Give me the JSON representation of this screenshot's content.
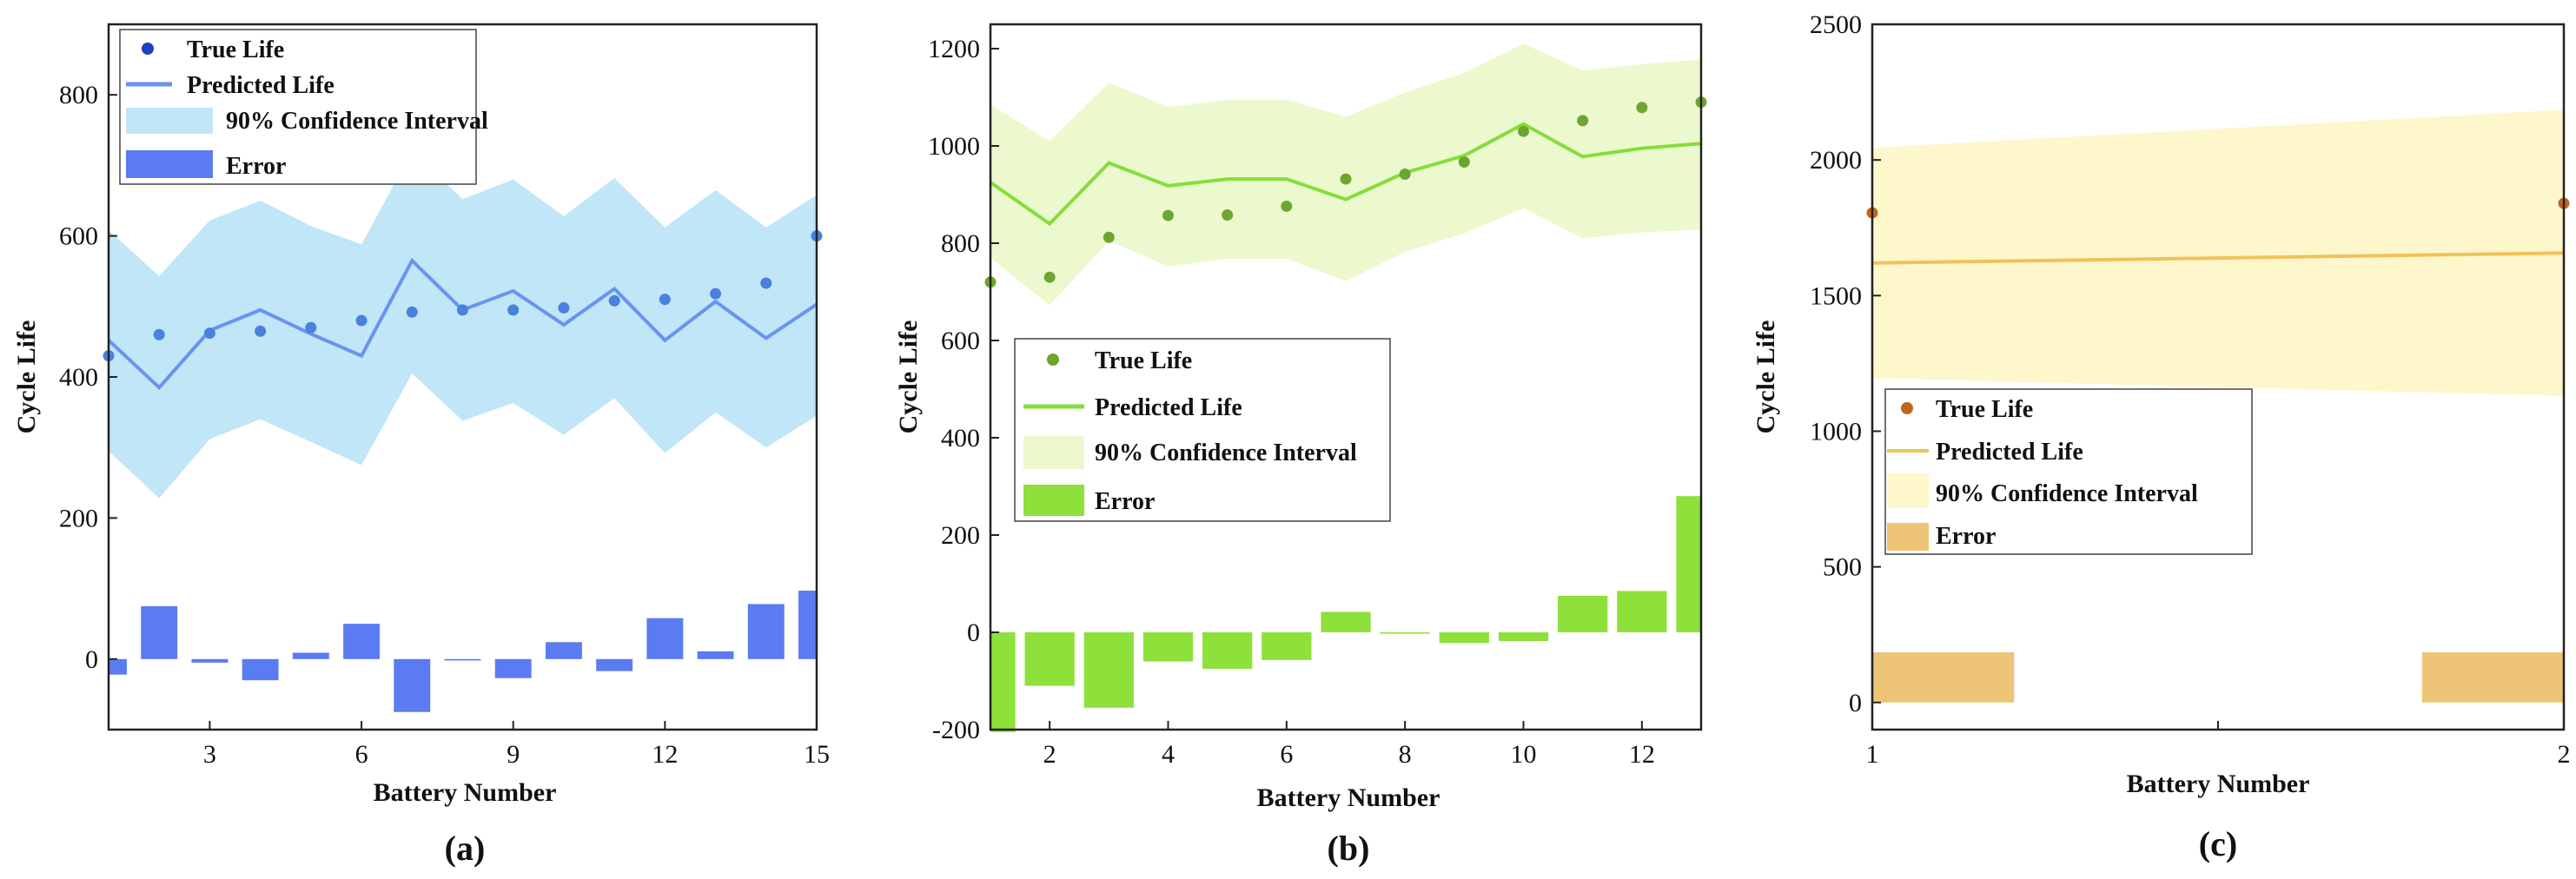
{
  "figure": {
    "panels": [
      {
        "id": "a",
        "panel_label": "(a)",
        "colors": {
          "point": "#4a80de",
          "line": "#6a93f0",
          "band": "#c0e6f7",
          "bar": "#5b7bf2",
          "legend_point": "#1f3fc4"
        },
        "chart_data": {
          "type": "line",
          "xlabel": "Battery Number",
          "ylabel": "Cycle Life",
          "xlim": [
            1,
            15
          ],
          "ylim": [
            -100,
            900
          ],
          "x_ticks": [
            3,
            6,
            9,
            12,
            15
          ],
          "y_ticks": [
            0,
            200,
            400,
            600,
            800
          ],
          "x": [
            1,
            2,
            3,
            4,
            5,
            6,
            7,
            8,
            9,
            10,
            11,
            12,
            13,
            14,
            15
          ],
          "series": [
            {
              "name": "True Life",
              "kind": "points",
              "values": [
                430,
                460,
                462,
                465,
                470,
                480,
                492,
                495,
                495,
                498,
                508,
                510,
                518,
                533,
                600
              ]
            },
            {
              "name": "Predicted Life",
              "kind": "line",
              "values": [
                452,
                385,
                466,
                495,
                461,
                430,
                565,
                495,
                522,
                474,
                525,
                452,
                507,
                455,
                503
              ]
            },
            {
              "name": "90% Confidence Interval",
              "kind": "band",
              "lower": [
                295,
                228,
                312,
                340,
                308,
                275,
                405,
                338,
                363,
                318,
                370,
                292,
                350,
                300,
                345
              ],
              "upper": [
                608,
                543,
                622,
                650,
                614,
                588,
                720,
                652,
                680,
                628,
                682,
                612,
                665,
                612,
                658
              ]
            },
            {
              "name": "Error",
              "kind": "bar",
              "values": [
                -22,
                75,
                -5,
                -30,
                9,
                50,
                -75,
                -2,
                -27,
                24,
                -17,
                58,
                11,
                78,
                97
              ]
            }
          ],
          "legend": [
            "True Life",
            "Predicted Life",
            "90% Confidence Interval",
            "Error"
          ]
        }
      },
      {
        "id": "b",
        "panel_label": "(b)",
        "colors": {
          "point": "#6ea52f",
          "line": "#86dd3c",
          "band": "#ecf9cf",
          "bar": "#8ee03a",
          "legend_point": "#6ea52f"
        },
        "chart_data": {
          "type": "line",
          "xlabel": "Battery Number",
          "ylabel": "Cycle Life",
          "xlim": [
            1,
            13
          ],
          "ylim": [
            -200,
            1250
          ],
          "x_ticks": [
            2,
            4,
            6,
            8,
            10,
            12
          ],
          "y_ticks": [
            -200,
            0,
            200,
            400,
            600,
            800,
            1000,
            1200
          ],
          "x": [
            1,
            2,
            3,
            4,
            5,
            6,
            7,
            8,
            9,
            10,
            11,
            12,
            13
          ],
          "series": [
            {
              "name": "True Life",
              "kind": "points",
              "values": [
                720,
                730,
                812,
                857,
                858,
                876,
                932,
                942,
                967,
                1030,
                1052,
                1079,
                1090
              ]
            },
            {
              "name": "Predicted Life",
              "kind": "line",
              "values": [
                925,
                840,
                965,
                918,
                932,
                932,
                890,
                945,
                980,
                1045,
                978,
                995,
                1005
              ]
            },
            {
              "name": "90% Confidence Interval",
              "kind": "band",
              "lower": [
                770,
                672,
                805,
                752,
                768,
                768,
                722,
                782,
                820,
                872,
                810,
                822,
                828
              ],
              "upper": [
                1085,
                1010,
                1130,
                1080,
                1095,
                1095,
                1060,
                1110,
                1150,
                1210,
                1155,
                1168,
                1178
              ]
            },
            {
              "name": "Error",
              "kind": "bar",
              "values": [
                -205,
                -110,
                -155,
                -60,
                -75,
                -57,
                42,
                -2,
                -22,
                -18,
                75,
                85,
                280
              ]
            }
          ],
          "legend": [
            "True Life",
            "Predicted Life",
            "90% Confidence Interval",
            "Error"
          ]
        }
      },
      {
        "id": "c",
        "panel_label": "(c)",
        "colors": {
          "point": "#c0661c",
          "line": "#f0c25a",
          "band": "#fff7cc",
          "bar": "#eec476",
          "legend_point": "#c0661c"
        },
        "chart_data": {
          "type": "line",
          "xlabel": "Battery Number",
          "ylabel": "Cycle Life",
          "xlim": [
            1,
            2
          ],
          "ylim": [
            -100,
            2500
          ],
          "x_ticks": [
            1,
            2
          ],
          "y_ticks": [
            0,
            500,
            1000,
            1500,
            2000,
            2500
          ],
          "x": [
            1,
            2
          ],
          "series": [
            {
              "name": "True Life",
              "kind": "points",
              "values": [
                1805,
                1840
              ]
            },
            {
              "name": "Predicted Life",
              "kind": "line",
              "values": [
                1620,
                1657
              ]
            },
            {
              "name": "90% Confidence Interval",
              "kind": "band",
              "lower": [
                1195,
                1130
              ],
              "upper": [
                2045,
                2185
              ]
            },
            {
              "name": "Error",
              "kind": "bar",
              "values": [
                185,
                185
              ]
            }
          ],
          "legend": [
            "True Life",
            "Predicted Life",
            "90% Confidence Interval",
            "Error"
          ]
        }
      }
    ]
  }
}
